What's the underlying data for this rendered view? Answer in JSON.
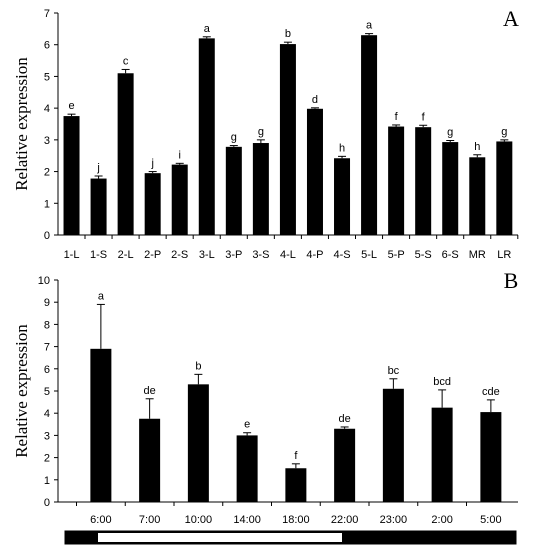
{
  "chart_data": [
    {
      "type": "bar",
      "panel_label": "A",
      "ylabel": "Relative expression",
      "ylim": [
        0,
        7
      ],
      "yticks": [
        0,
        1,
        2,
        3,
        4,
        5,
        6,
        7
      ],
      "categories": [
        "1-L",
        "1-S",
        "2-L",
        "2-P",
        "2-S",
        "3-L",
        "3-P",
        "3-S",
        "4-L",
        "4-P",
        "4-S",
        "5-L",
        "5-P",
        "5-S",
        "6-S",
        "MR",
        "LR"
      ],
      "values": [
        3.75,
        1.78,
        5.1,
        1.95,
        2.22,
        6.2,
        2.78,
        2.9,
        6.02,
        3.98,
        2.42,
        6.3,
        3.42,
        3.4,
        2.93,
        2.45,
        2.95
      ],
      "errors": [
        0.06,
        0.08,
        0.12,
        0.05,
        0.04,
        0.05,
        0.04,
        0.1,
        0.06,
        0.03,
        0.06,
        0.05,
        0.05,
        0.06,
        0.05,
        0.08,
        0.05
      ],
      "significance": [
        "e",
        "j",
        "c",
        "j",
        "i",
        "a",
        "g",
        "g",
        "b",
        "d",
        "h",
        "a",
        "f",
        "f",
        "g",
        "h",
        "g"
      ],
      "bar_color": "#000000"
    },
    {
      "type": "bar",
      "panel_label": "B",
      "ylabel": "Relative expression",
      "ylim": [
        0,
        10
      ],
      "yticks": [
        0,
        1,
        2,
        3,
        4,
        5,
        6,
        7,
        8,
        9,
        10
      ],
      "categories": [
        "6:00",
        "7:00",
        "10:00",
        "14:00",
        "18:00",
        "22:00",
        "23:00",
        "2:00",
        "5:00"
      ],
      "values": [
        6.9,
        3.75,
        5.3,
        3.0,
        1.52,
        3.3,
        5.1,
        4.25,
        4.05
      ],
      "errors": [
        2.0,
        0.9,
        0.45,
        0.12,
        0.2,
        0.08,
        0.45,
        0.8,
        0.55
      ],
      "significance": [
        "a",
        "de",
        "b",
        "e",
        "f",
        "de",
        "bc",
        "bcd",
        "cde"
      ],
      "bar_color": "#000000",
      "photoperiod_bar": {
        "light_color": "#ffffff",
        "dark_color": "#000000"
      }
    }
  ]
}
